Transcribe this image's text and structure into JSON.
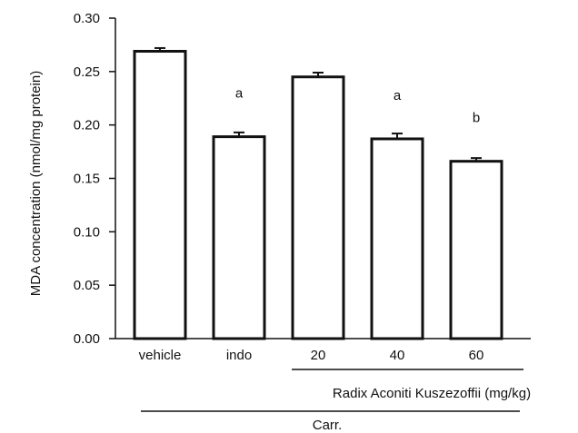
{
  "chart_data": {
    "type": "bar",
    "categories": [
      "vehicle",
      "indo",
      "20",
      "40",
      "60"
    ],
    "values": [
      0.269,
      0.189,
      0.245,
      0.187,
      0.166
    ],
    "errors": [
      0.003,
      0.004,
      0.004,
      0.005,
      0.003
    ],
    "annotations": [
      "",
      "a",
      "",
      "a",
      "b"
    ],
    "ylabel": "MDA  concentration (nmol/mg protein)",
    "yticks": [
      "0.00",
      "0.05",
      "0.10",
      "0.15",
      "0.20",
      "0.25",
      "0.30"
    ],
    "ylim": [
      0,
      0.3
    ],
    "grid": false,
    "groups": [
      {
        "label": "Radix Aconiti Kuszezoffii (mg/kg)",
        "categories": [
          "20",
          "40",
          "60"
        ]
      },
      {
        "label": "Carr.",
        "categories": [
          "vehicle",
          "indo",
          "20",
          "40",
          "60"
        ]
      }
    ]
  }
}
